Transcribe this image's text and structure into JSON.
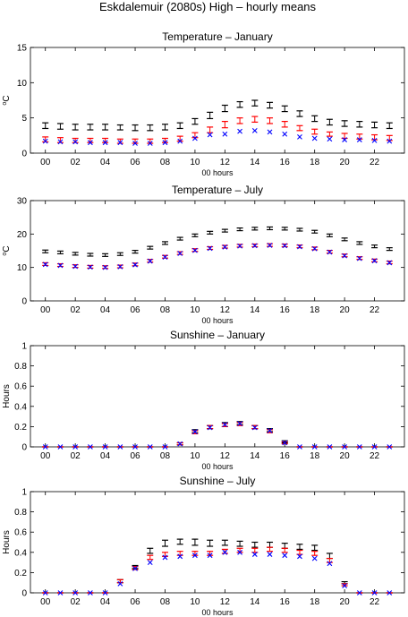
{
  "figure_title": "Eskdalemuir (2080s) High – hourly means",
  "colors": {
    "black": "#000000",
    "red": "#ff0000",
    "blue": "#0000ff"
  },
  "chart_data": [
    {
      "type": "scatter",
      "title": "Temperature – January",
      "ylabel": "oC",
      "xlabel": "00 hours",
      "xlim": [
        -1,
        24
      ],
      "ylim": [
        0,
        15
      ],
      "xticks": [
        "00",
        "02",
        "04",
        "06",
        "08",
        "10",
        "12",
        "14",
        "16",
        "18",
        "20",
        "22"
      ],
      "yticks": [
        "0",
        "5",
        "10",
        "15"
      ],
      "x": [
        0,
        1,
        2,
        3,
        4,
        5,
        6,
        7,
        8,
        9,
        10,
        11,
        12,
        13,
        14,
        15,
        16,
        17,
        18,
        19,
        20,
        21,
        22,
        23
      ],
      "series": [
        {
          "color": "#000000",
          "marker": "errorbar",
          "low": [
            3.5,
            3.4,
            3.3,
            3.3,
            3.3,
            3.3,
            3.2,
            3.2,
            3.3,
            3.5,
            4.1,
            4.9,
            5.9,
            6.5,
            6.7,
            6.4,
            5.9,
            5.2,
            4.5,
            4.0,
            3.8,
            3.7,
            3.6,
            3.5
          ],
          "high": [
            4.3,
            4.2,
            4.1,
            4.1,
            4.1,
            4.0,
            4.0,
            4.0,
            4.1,
            4.3,
            4.9,
            5.8,
            6.8,
            7.3,
            7.5,
            7.2,
            6.7,
            6.0,
            5.3,
            4.8,
            4.6,
            4.5,
            4.4,
            4.3
          ]
        },
        {
          "color": "#ff0000",
          "marker": "errorbar",
          "low": [
            1.6,
            1.5,
            1.5,
            1.5,
            1.5,
            1.4,
            1.4,
            1.4,
            1.5,
            1.7,
            2.2,
            2.9,
            3.6,
            4.2,
            4.4,
            4.2,
            3.7,
            3.2,
            2.7,
            2.4,
            2.1,
            2.0,
            1.9,
            1.8
          ],
          "high": [
            2.3,
            2.2,
            2.1,
            2.1,
            2.1,
            2.0,
            2.0,
            2.0,
            2.1,
            2.4,
            2.9,
            3.7,
            4.5,
            5.0,
            5.2,
            5.0,
            4.5,
            3.9,
            3.4,
            3.0,
            2.8,
            2.7,
            2.6,
            2.5
          ]
        },
        {
          "color": "#0000ff",
          "marker": "x",
          "values": [
            1.7,
            1.6,
            1.6,
            1.5,
            1.5,
            1.5,
            1.4,
            1.4,
            1.5,
            1.7,
            2.1,
            2.6,
            2.7,
            3.1,
            3.2,
            3.0,
            2.7,
            2.3,
            2.1,
            2.0,
            1.9,
            1.9,
            1.8,
            1.7
          ]
        }
      ]
    },
    {
      "type": "scatter",
      "title": "Temperature – July",
      "ylabel": "oC",
      "xlabel": "00 hours",
      "xlim": [
        -1,
        24
      ],
      "ylim": [
        0,
        30
      ],
      "xticks": [
        "00",
        "02",
        "04",
        "06",
        "08",
        "10",
        "12",
        "14",
        "16",
        "18",
        "20",
        "22"
      ],
      "yticks": [
        "0",
        "10",
        "20",
        "30"
      ],
      "x": [
        0,
        1,
        2,
        3,
        4,
        5,
        6,
        7,
        8,
        9,
        10,
        11,
        12,
        13,
        14,
        15,
        16,
        17,
        18,
        19,
        20,
        21,
        22,
        23
      ],
      "series": [
        {
          "color": "#000000",
          "marker": "errorbar",
          "low": [
            14.4,
            14.1,
            13.7,
            13.4,
            13.3,
            13.6,
            14.3,
            15.5,
            16.9,
            18.2,
            19.2,
            20.0,
            20.6,
            21.0,
            21.2,
            21.3,
            21.2,
            20.9,
            20.3,
            19.2,
            18.0,
            16.9,
            15.9,
            15.1
          ],
          "high": [
            15.2,
            14.9,
            14.5,
            14.2,
            14.1,
            14.4,
            15.1,
            16.3,
            17.7,
            19.0,
            20.0,
            20.8,
            21.4,
            21.8,
            22.0,
            22.1,
            22.0,
            21.7,
            21.1,
            20.0,
            18.8,
            17.7,
            16.7,
            15.9
          ]
        },
        {
          "color": "#ff0000",
          "marker": "errorbar",
          "low": [
            10.6,
            10.3,
            10.0,
            9.8,
            9.7,
            9.9,
            10.5,
            11.6,
            12.8,
            13.9,
            14.8,
            15.4,
            15.8,
            16.1,
            16.2,
            16.3,
            16.2,
            15.9,
            15.3,
            14.3,
            13.2,
            12.4,
            11.7,
            11.1
          ],
          "high": [
            11.4,
            11.1,
            10.8,
            10.6,
            10.5,
            10.7,
            11.3,
            12.4,
            13.6,
            14.7,
            15.6,
            16.2,
            16.6,
            16.9,
            17.0,
            17.1,
            17.0,
            16.7,
            16.1,
            15.1,
            14.0,
            13.2,
            12.5,
            11.9
          ]
        },
        {
          "color": "#0000ff",
          "marker": "x",
          "values": [
            10.9,
            10.6,
            10.3,
            10.1,
            10.0,
            10.2,
            10.8,
            11.9,
            13.1,
            14.2,
            15.1,
            15.7,
            16.1,
            16.4,
            16.5,
            16.6,
            16.5,
            16.2,
            15.6,
            14.6,
            13.5,
            12.7,
            12.0,
            11.4
          ]
        }
      ]
    },
    {
      "type": "scatter",
      "title": "Sunshine – January",
      "ylabel": "Hours",
      "xlabel": "00 hours",
      "xlim": [
        -1,
        24
      ],
      "ylim": [
        0,
        1
      ],
      "xticks": [
        "00",
        "02",
        "04",
        "06",
        "08",
        "10",
        "12",
        "14",
        "16",
        "18",
        "20",
        "22"
      ],
      "yticks": [
        "0",
        "0.2",
        "0.4",
        "0.6",
        "0.8",
        "1"
      ],
      "x": [
        0,
        1,
        2,
        3,
        4,
        5,
        6,
        7,
        8,
        9,
        10,
        11,
        12,
        13,
        14,
        15,
        16,
        17,
        18,
        19,
        20,
        21,
        22,
        23
      ],
      "series": [
        {
          "color": "#000000",
          "marker": "errorbar",
          "low": [
            0,
            0,
            0,
            0,
            0,
            0,
            0,
            0,
            0,
            0.02,
            0.14,
            0.18,
            0.2,
            0.22,
            0.18,
            0.15,
            0.04,
            0,
            0,
            0,
            0,
            0,
            0,
            0
          ],
          "high": [
            0,
            0,
            0,
            0,
            0,
            0,
            0,
            0,
            0,
            0.04,
            0.17,
            0.21,
            0.24,
            0.25,
            0.21,
            0.18,
            0.06,
            0,
            0,
            0,
            0,
            0,
            0,
            0
          ]
        },
        {
          "color": "#ff0000",
          "marker": "errorbar",
          "low": [
            0,
            0,
            0,
            0,
            0,
            0,
            0,
            0,
            0,
            0.02,
            0.13,
            0.18,
            0.2,
            0.21,
            0.18,
            0.14,
            0.03,
            0,
            0,
            0,
            0,
            0,
            0,
            0
          ],
          "high": [
            0,
            0,
            0,
            0,
            0,
            0,
            0,
            0,
            0,
            0.04,
            0.16,
            0.21,
            0.23,
            0.24,
            0.21,
            0.17,
            0.05,
            0,
            0,
            0,
            0,
            0,
            0,
            0
          ]
        },
        {
          "color": "#0000ff",
          "marker": "x",
          "values": [
            0,
            0,
            0,
            0,
            0,
            0,
            0,
            0,
            0,
            0.03,
            0.15,
            0.19,
            0.22,
            0.23,
            0.19,
            0.16,
            0.04,
            0,
            0,
            0,
            0,
            0,
            0,
            0
          ]
        }
      ]
    },
    {
      "type": "scatter",
      "title": "Sunshine – July",
      "ylabel": "Hours",
      "xlabel": "00 hours",
      "xlim": [
        -1,
        24
      ],
      "ylim": [
        0,
        1
      ],
      "xticks": [
        "00",
        "02",
        "04",
        "06",
        "08",
        "10",
        "12",
        "14",
        "16",
        "18",
        "20",
        "22"
      ],
      "yticks": [
        "0",
        "0.2",
        "0.4",
        "0.6",
        "0.8",
        "1"
      ],
      "x": [
        0,
        1,
        2,
        3,
        4,
        5,
        6,
        7,
        8,
        9,
        10,
        11,
        12,
        13,
        14,
        15,
        16,
        17,
        18,
        19,
        20,
        21,
        22,
        23
      ],
      "series": [
        {
          "color": "#000000",
          "marker": "errorbar",
          "low": [
            0,
            0,
            0,
            0,
            0,
            0.1,
            0.24,
            0.39,
            0.46,
            0.48,
            0.47,
            0.46,
            0.47,
            0.46,
            0.45,
            0.45,
            0.44,
            0.43,
            0.42,
            0.34,
            0.09,
            0,
            0,
            0
          ],
          "high": [
            0,
            0,
            0,
            0,
            0,
            0.13,
            0.27,
            0.44,
            0.52,
            0.53,
            0.53,
            0.52,
            0.52,
            0.51,
            0.5,
            0.5,
            0.49,
            0.48,
            0.47,
            0.39,
            0.11,
            0,
            0,
            0
          ]
        },
        {
          "color": "#ff0000",
          "marker": "errorbar",
          "low": [
            0,
            0,
            0,
            0,
            0,
            0.1,
            0.23,
            0.33,
            0.36,
            0.37,
            0.37,
            0.37,
            0.39,
            0.4,
            0.4,
            0.41,
            0.4,
            0.38,
            0.37,
            0.3,
            0.07,
            0,
            0,
            0
          ],
          "high": [
            0,
            0,
            0,
            0,
            0,
            0.13,
            0.26,
            0.37,
            0.4,
            0.41,
            0.41,
            0.41,
            0.43,
            0.44,
            0.44,
            0.45,
            0.44,
            0.42,
            0.41,
            0.34,
            0.09,
            0,
            0,
            0
          ]
        },
        {
          "color": "#0000ff",
          "marker": "x",
          "values": [
            0,
            0,
            0,
            0,
            0,
            0.09,
            0.24,
            0.3,
            0.35,
            0.36,
            0.37,
            0.37,
            0.4,
            0.4,
            0.38,
            0.38,
            0.37,
            0.36,
            0.34,
            0.29,
            0.07,
            0,
            0,
            0
          ]
        }
      ]
    }
  ]
}
